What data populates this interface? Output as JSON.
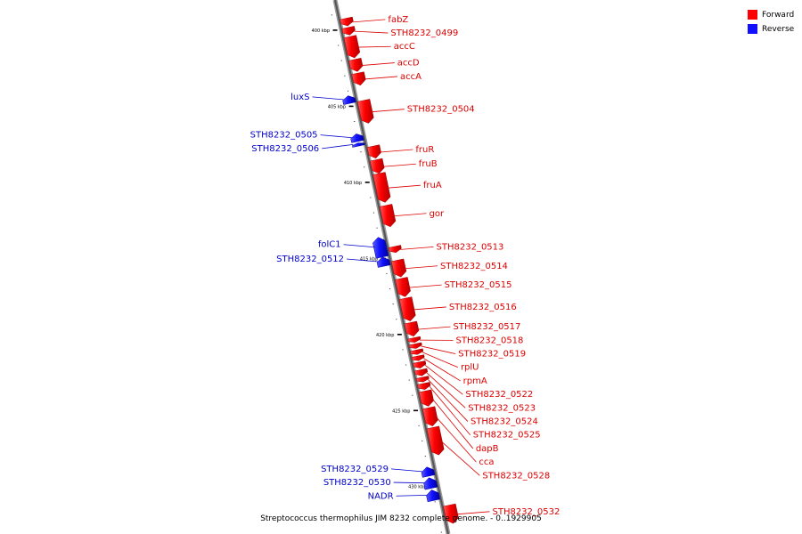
{
  "legend": {
    "forward": {
      "label": "Forward",
      "color": "#ff0000"
    },
    "reverse": {
      "label": "Reverse",
      "color": "#1010ff"
    }
  },
  "caption": "Streptococcus thermophilus JIM 8232 complete genome. - 0..1929905",
  "scale": {
    "ticks": [
      {
        "kbp": 400,
        "label": "400 kbp"
      },
      {
        "kbp": 405,
        "label": "405 kbp"
      },
      {
        "kbp": 410,
        "label": "410 kbp"
      },
      {
        "kbp": 415,
        "label": "415 kbp"
      },
      {
        "kbp": 420,
        "label": "420 kbp"
      },
      {
        "kbp": 425,
        "label": "425 kbp"
      },
      {
        "kbp": 430,
        "label": "430 kbp"
      }
    ]
  },
  "features": [
    {
      "name": "fabZ",
      "strand": "forward",
      "start": 399.4,
      "end": 399.9
    },
    {
      "name": "STH8232_0499",
      "strand": "forward",
      "start": 400.0,
      "end": 400.5
    },
    {
      "name": "accC",
      "strand": "forward",
      "start": 400.6,
      "end": 402.0
    },
    {
      "name": "accD",
      "strand": "forward",
      "start": 402.1,
      "end": 402.9
    },
    {
      "name": "accA",
      "strand": "forward",
      "start": 403.0,
      "end": 403.8
    },
    {
      "name": "luxS",
      "strand": "reverse",
      "start": 404.3,
      "end": 404.8
    },
    {
      "name": "STH8232_0504",
      "strand": "forward",
      "start": 404.8,
      "end": 406.3
    },
    {
      "name": "STH8232_0505",
      "strand": "reverse",
      "start": 406.8,
      "end": 407.3
    },
    {
      "name": "STH8232_0506",
      "strand": "reverse",
      "start": 407.4,
      "end": 407.6
    },
    {
      "name": "fruR",
      "strand": "forward",
      "start": 407.8,
      "end": 408.6
    },
    {
      "name": "fruB",
      "strand": "forward",
      "start": 408.7,
      "end": 409.6
    },
    {
      "name": "fruA",
      "strand": "forward",
      "start": 409.6,
      "end": 411.5
    },
    {
      "name": "gor",
      "strand": "forward",
      "start": 411.7,
      "end": 413.1
    },
    {
      "name": "folC1",
      "strand": "reverse",
      "start": 413.6,
      "end": 414.9
    },
    {
      "name": "STH8232_0512",
      "strand": "reverse",
      "start": 414.9,
      "end": 415.5
    },
    {
      "name": "STH8232_0513",
      "strand": "forward",
      "start": 414.4,
      "end": 414.8
    },
    {
      "name": "STH8232_0514",
      "strand": "forward",
      "start": 415.3,
      "end": 416.4
    },
    {
      "name": "STH8232_0515",
      "strand": "forward",
      "start": 416.5,
      "end": 417.7
    },
    {
      "name": "STH8232_0516",
      "strand": "forward",
      "start": 417.8,
      "end": 419.3
    },
    {
      "name": "STH8232_0517",
      "strand": "forward",
      "start": 419.4,
      "end": 420.3
    },
    {
      "name": "STH8232_0518",
      "strand": "forward",
      "start": 420.4,
      "end": 420.7
    },
    {
      "name": "STH8232_0519",
      "strand": "forward",
      "start": 420.8,
      "end": 421.1
    },
    {
      "name": "rplU",
      "strand": "forward",
      "start": 421.2,
      "end": 421.5
    },
    {
      "name": "rpmA",
      "strand": "forward",
      "start": 421.6,
      "end": 421.9
    },
    {
      "name": "STH8232_0522",
      "strand": "forward",
      "start": 422.0,
      "end": 422.4
    },
    {
      "name": "STH8232_0523",
      "strand": "forward",
      "start": 422.5,
      "end": 422.9
    },
    {
      "name": "STH8232_0524",
      "strand": "forward",
      "start": 423.0,
      "end": 423.3
    },
    {
      "name": "STH8232_0525",
      "strand": "forward",
      "start": 423.4,
      "end": 423.8
    },
    {
      "name": "dapB",
      "strand": "forward",
      "start": 423.9,
      "end": 424.9
    },
    {
      "name": "cca",
      "strand": "forward",
      "start": 425.0,
      "end": 426.2
    },
    {
      "name": "STH8232_0528",
      "strand": "forward",
      "start": 426.3,
      "end": 428.1
    },
    {
      "name": "STH8232_0529",
      "strand": "reverse",
      "start": 428.7,
      "end": 429.3
    },
    {
      "name": "STH8232_0530",
      "strand": "reverse",
      "start": 429.4,
      "end": 430.1
    },
    {
      "name": "NADR",
      "strand": "reverse",
      "start": 430.2,
      "end": 430.9
    },
    {
      "name": "STH8232_0532",
      "strand": "forward",
      "start": 431.4,
      "end": 432.6
    }
  ]
}
